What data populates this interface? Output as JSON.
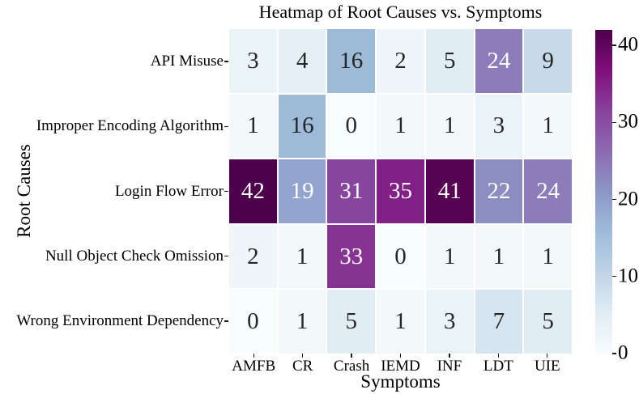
{
  "chart_data": {
    "type": "heatmap",
    "title": "Heatmap of Root Causes vs. Symptoms",
    "xlabel": "Symptoms",
    "ylabel": "Root Causes",
    "columns": [
      "AMFB",
      "CR",
      "Crash",
      "IEMD",
      "INF",
      "LDT",
      "UIE"
    ],
    "rows": [
      "API Misuse",
      "Improper Encoding Algorithm",
      "Login Flow Error",
      "Null Object Check Omission",
      "Wrong Environment Dependency"
    ],
    "values": [
      [
        3,
        4,
        16,
        2,
        5,
        24,
        9
      ],
      [
        1,
        16,
        0,
        1,
        1,
        3,
        1
      ],
      [
        42,
        19,
        31,
        35,
        41,
        22,
        24
      ],
      [
        2,
        1,
        33,
        0,
        1,
        1,
        1
      ],
      [
        0,
        1,
        5,
        1,
        3,
        7,
        5
      ]
    ],
    "vmin": 0,
    "vmax": 42,
    "colorbar_ticks": [
      0,
      10,
      20,
      30,
      40
    ],
    "colormap": {
      "name": "BuPu",
      "stops": [
        "#f7fcfd",
        "#e0ecf4",
        "#bfd3e6",
        "#9ebcda",
        "#8c96c6",
        "#8c6bb1",
        "#88419d",
        "#810f7c",
        "#4d004b"
      ]
    },
    "annotation_colors": {
      "light_text": "#ffffff",
      "dark_text": "#262626"
    },
    "layout": {
      "grid_on": false,
      "legend_position": "colorbar-right"
    }
  }
}
